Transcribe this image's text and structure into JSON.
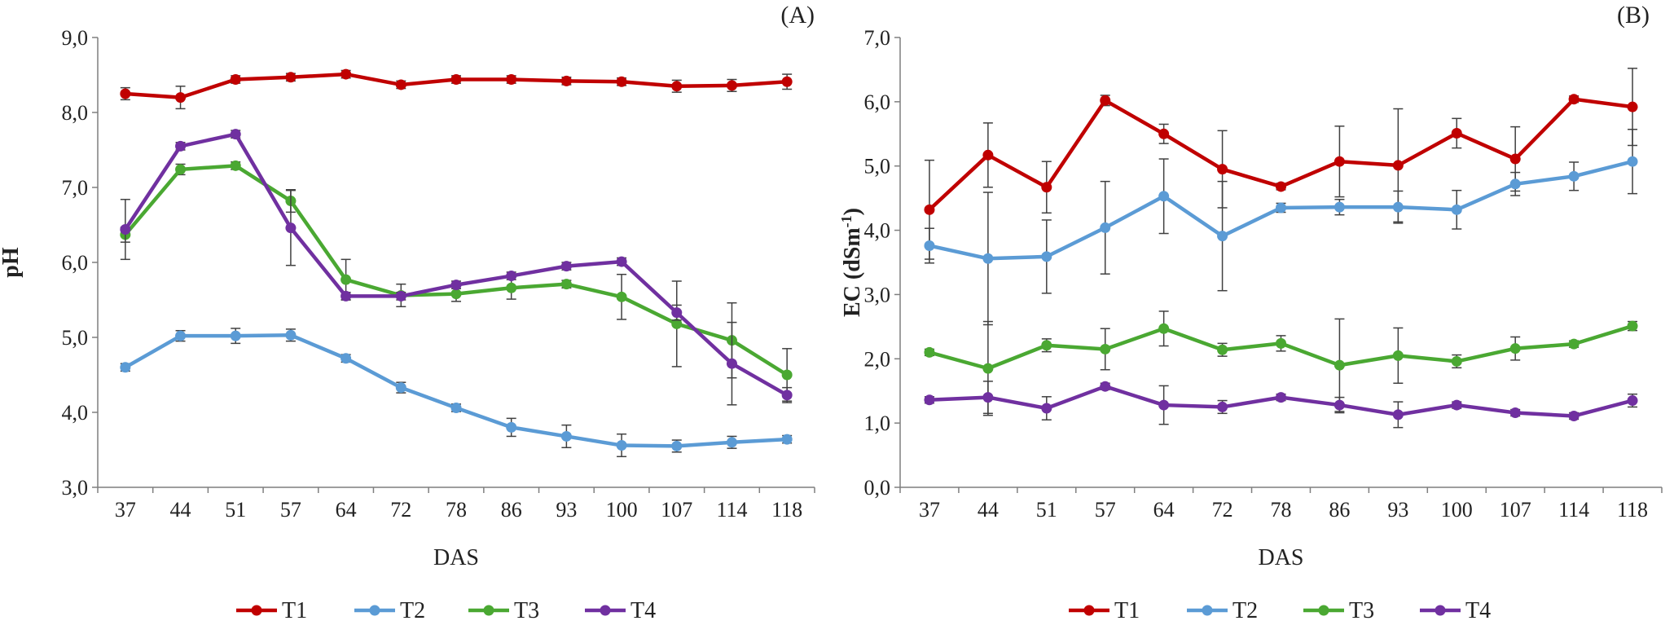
{
  "chart_data": [
    {
      "type": "line",
      "panel_label": "(A)",
      "xlabel": "DAS",
      "ylabel": "pH",
      "ylabel_sup": "",
      "ylim": [
        3,
        9
      ],
      "yticks": [
        "3,0",
        "4,0",
        "5,0",
        "6,0",
        "7,0",
        "8,0",
        "9,0"
      ],
      "categories": [
        "37",
        "44",
        "51",
        "57",
        "64",
        "72",
        "78",
        "86",
        "93",
        "100",
        "107",
        "114",
        "118"
      ],
      "series": [
        {
          "name": "T1",
          "color": "#c00000",
          "values": [
            8.25,
            8.2,
            8.44,
            8.47,
            8.51,
            8.37,
            8.44,
            8.44,
            8.42,
            8.41,
            8.35,
            8.36,
            8.41
          ],
          "err": [
            0.08,
            0.15,
            0.05,
            0.05,
            0.05,
            0.05,
            0.05,
            0.05,
            0.05,
            0.05,
            0.08,
            0.08,
            0.1
          ]
        },
        {
          "name": "T2",
          "color": "#5b9bd5",
          "values": [
            4.6,
            5.02,
            5.02,
            5.03,
            4.72,
            4.33,
            4.06,
            3.8,
            3.68,
            3.56,
            3.55,
            3.6,
            3.64
          ],
          "err": [
            0.05,
            0.07,
            0.1,
            0.08,
            0.05,
            0.07,
            0.05,
            0.12,
            0.15,
            0.15,
            0.08,
            0.08,
            0.05
          ]
        },
        {
          "name": "T3",
          "color": "#4aa832",
          "values": [
            6.37,
            7.24,
            7.29,
            6.82,
            5.77,
            5.56,
            5.58,
            5.66,
            5.71,
            5.54,
            5.18,
            4.96,
            4.5
          ],
          "err": [
            0.1,
            0.07,
            0.05,
            0.15,
            0.27,
            0.15,
            0.1,
            0.15,
            0.05,
            0.3,
            0.57,
            0.5,
            0.35
          ]
        },
        {
          "name": "T4",
          "color": "#7030a0",
          "values": [
            6.44,
            7.55,
            7.71,
            6.46,
            5.55,
            5.55,
            5.7,
            5.82,
            5.95,
            6.01,
            5.33,
            4.65,
            4.23
          ],
          "err": [
            0.4,
            0.05,
            0.05,
            0.5,
            0.05,
            0.05,
            0.05,
            0.05,
            0.05,
            0.05,
            0.1,
            0.55,
            0.1
          ]
        }
      ]
    },
    {
      "type": "line",
      "panel_label": "(B)",
      "xlabel": "DAS",
      "ylabel": "EC (dSm",
      "ylabel_sup": "-1",
      "ylabel_close": ")",
      "ylim": [
        0,
        7
      ],
      "yticks": [
        "0,0",
        "1,0",
        "2,0",
        "3,0",
        "4,0",
        "5,0",
        "6,0",
        "7,0"
      ],
      "categories": [
        "37",
        "44",
        "51",
        "57",
        "64",
        "72",
        "78",
        "86",
        "93",
        "100",
        "107",
        "114",
        "118"
      ],
      "series": [
        {
          "name": "T1",
          "color": "#c00000",
          "values": [
            4.32,
            5.17,
            4.67,
            6.02,
            5.5,
            4.95,
            4.68,
            5.07,
            5.01,
            5.51,
            5.11,
            6.04,
            5.92
          ],
          "err": [
            0.77,
            0.5,
            0.4,
            0.08,
            0.15,
            0.6,
            0.05,
            0.55,
            0.88,
            0.23,
            0.5,
            0.05,
            0.6
          ]
        },
        {
          "name": "T2",
          "color": "#5b9bd5",
          "values": [
            3.76,
            3.56,
            3.59,
            4.04,
            4.53,
            3.91,
            4.35,
            4.36,
            4.36,
            4.32,
            4.72,
            4.84,
            5.07
          ],
          "err": [
            0.27,
            1.03,
            0.57,
            0.72,
            0.58,
            0.85,
            0.07,
            0.12,
            0.25,
            0.3,
            0.18,
            0.22,
            0.5
          ]
        },
        {
          "name": "T3",
          "color": "#4aa832",
          "values": [
            2.1,
            1.85,
            2.21,
            2.15,
            2.47,
            2.14,
            2.24,
            1.9,
            2.05,
            1.96,
            2.16,
            2.23,
            2.51
          ],
          "err": [
            0.05,
            0.73,
            0.1,
            0.32,
            0.27,
            0.1,
            0.12,
            0.72,
            0.43,
            0.1,
            0.18,
            0.05,
            0.07
          ]
        },
        {
          "name": "T4",
          "color": "#7030a0",
          "values": [
            1.36,
            1.4,
            1.23,
            1.57,
            1.28,
            1.25,
            1.4,
            1.28,
            1.13,
            1.28,
            1.16,
            1.11,
            1.35
          ],
          "err": [
            0.05,
            0.25,
            0.18,
            0.05,
            0.3,
            0.1,
            0.05,
            0.12,
            0.2,
            0.05,
            0.05,
            0.05,
            0.1
          ]
        }
      ]
    }
  ],
  "legend": [
    "T1",
    "T2",
    "T3",
    "T4"
  ]
}
